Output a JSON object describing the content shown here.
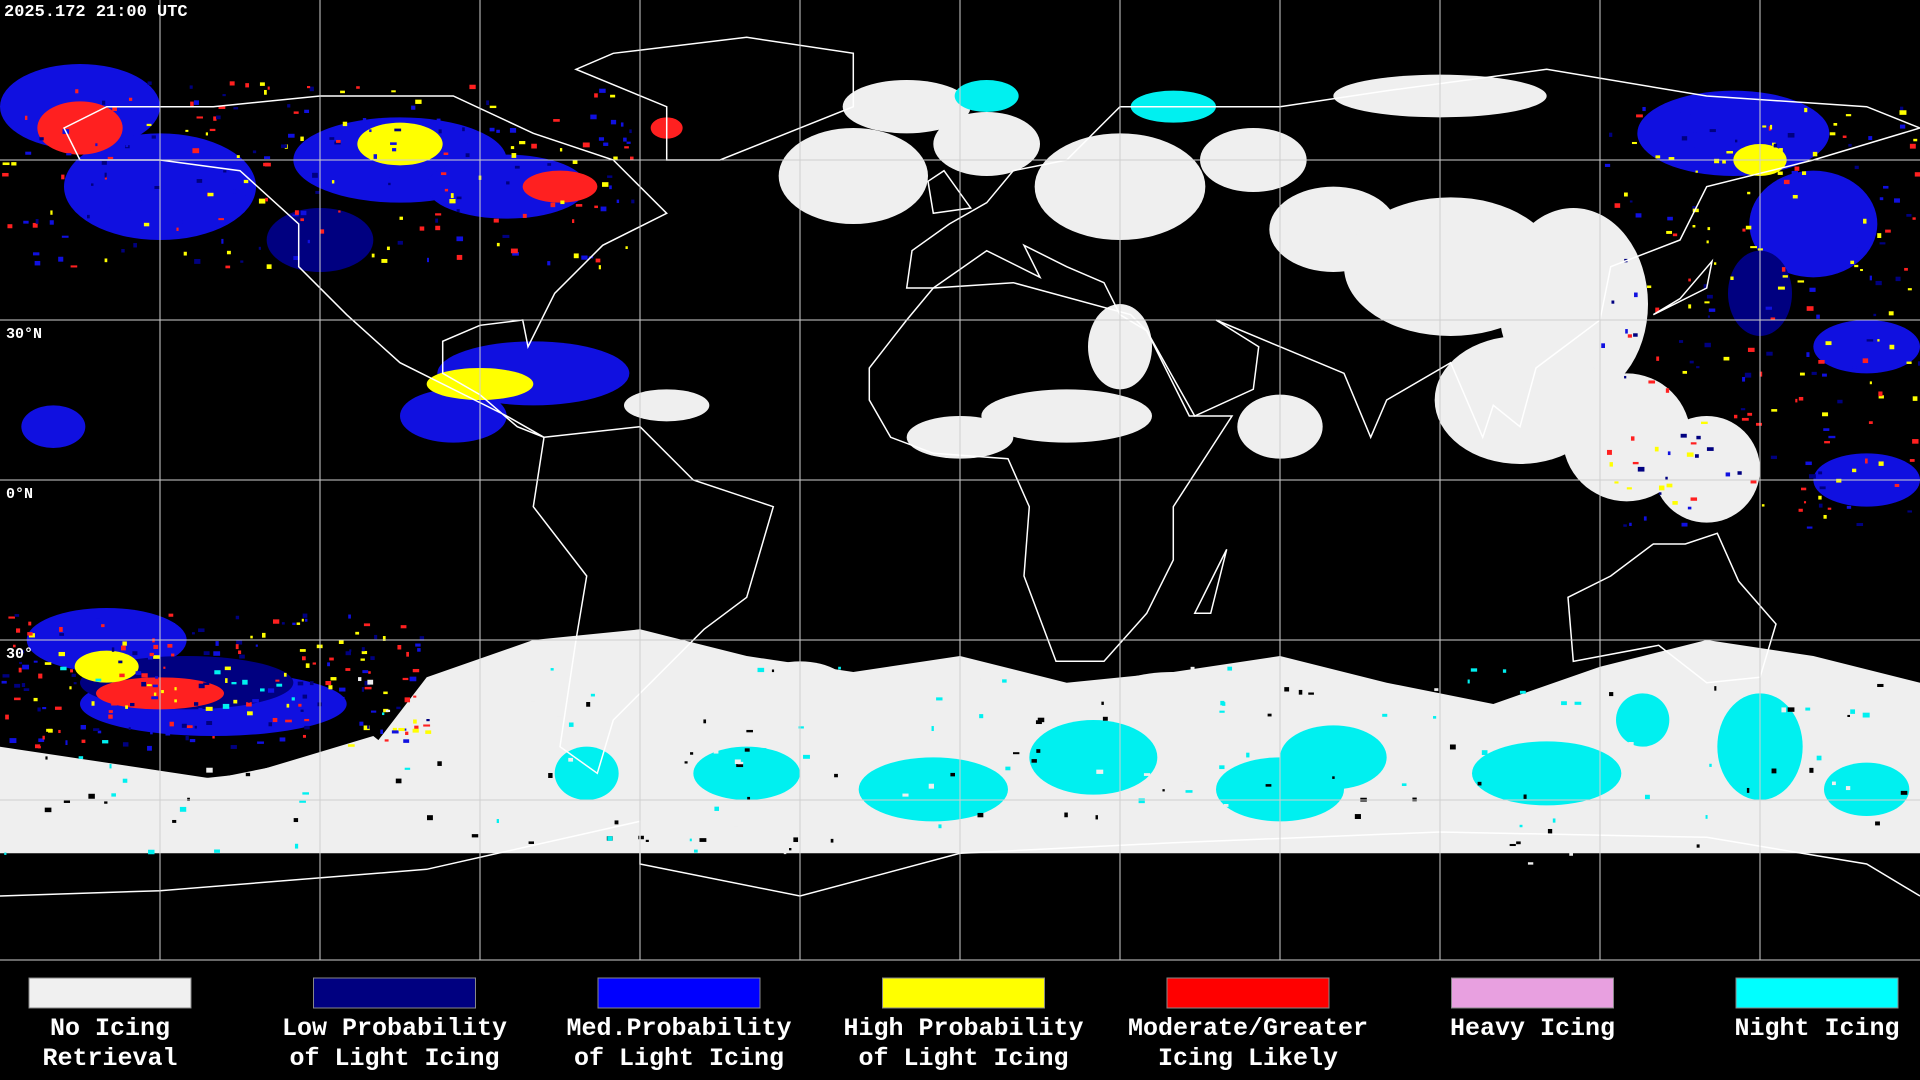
{
  "header": {
    "timestamp": "2025.172 21:00 UTC"
  },
  "latitude_labels": [
    "30°N",
    "0°N",
    "30°"
  ],
  "legend": [
    {
      "color": "#f0f0f0",
      "label": [
        "No Icing",
        "Retrieval"
      ]
    },
    {
      "color": "#000080",
      "label": [
        "Low Probability",
        "of Light Icing"
      ]
    },
    {
      "color": "#0000ff",
      "label": [
        "Med.Probability",
        "of Light Icing"
      ]
    },
    {
      "color": "#ffff00",
      "label": [
        "High Probability",
        "of Light Icing"
      ]
    },
    {
      "color": "#ff0000",
      "label": [
        "Moderate/Greater",
        "Icing Likely"
      ]
    },
    {
      "color": "#e8a0e0",
      "label": [
        "Heavy Icing"
      ]
    },
    {
      "color": "#00ffff",
      "label": [
        "Night Icing"
      ]
    }
  ]
}
